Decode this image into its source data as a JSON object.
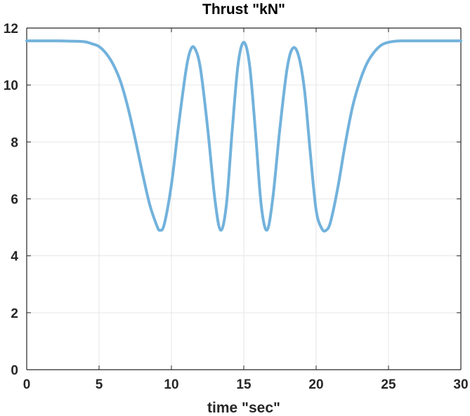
{
  "chart_data": {
    "type": "line",
    "title": "Thrust \"kN\"",
    "xlabel": "time \"sec\"",
    "ylabel": "",
    "xlim": [
      0,
      30
    ],
    "ylim": [
      0,
      12
    ],
    "xticks": [
      0,
      5,
      10,
      15,
      20,
      25,
      30
    ],
    "yticks": [
      0,
      2,
      4,
      6,
      8,
      10,
      12
    ],
    "grid": true,
    "colors": {
      "line": "#72b2dc",
      "grid": "#e6e6e6",
      "axis": "#262626"
    },
    "series": [
      {
        "x": [
          0,
          1,
          2,
          3,
          4,
          4.5,
          5,
          5.5,
          6,
          6.5,
          7,
          7.5,
          8,
          8.5,
          9,
          9.2,
          9.5,
          10,
          10.5,
          11,
          11.3,
          11.6,
          12,
          12.5,
          13,
          13.4,
          13.8,
          14.2,
          14.6,
          15,
          15.4,
          15.8,
          16.2,
          16.6,
          17,
          17.5,
          18,
          18.4,
          18.8,
          19.2,
          19.6,
          20,
          20.4,
          20.7,
          21,
          21.5,
          22,
          22.5,
          23,
          23.5,
          24,
          24.5,
          25,
          25.5,
          26,
          27,
          28,
          29,
          30
        ],
        "values": [
          11.55,
          11.55,
          11.55,
          11.54,
          11.52,
          11.45,
          11.35,
          11.1,
          10.7,
          10.1,
          9.2,
          8.1,
          6.9,
          5.8,
          5.05,
          4.9,
          5.1,
          6.5,
          8.6,
          10.5,
          11.2,
          11.3,
          10.6,
          8.5,
          6.0,
          4.9,
          5.8,
          8.4,
          10.7,
          11.5,
          10.7,
          8.4,
          5.8,
          4.9,
          6.0,
          8.5,
          10.6,
          11.3,
          11.0,
          9.8,
          7.6,
          5.6,
          4.95,
          4.9,
          5.2,
          6.4,
          7.9,
          9.2,
          10.1,
          10.75,
          11.15,
          11.4,
          11.5,
          11.54,
          11.55,
          11.55,
          11.55,
          11.55,
          11.55
        ]
      }
    ]
  }
}
